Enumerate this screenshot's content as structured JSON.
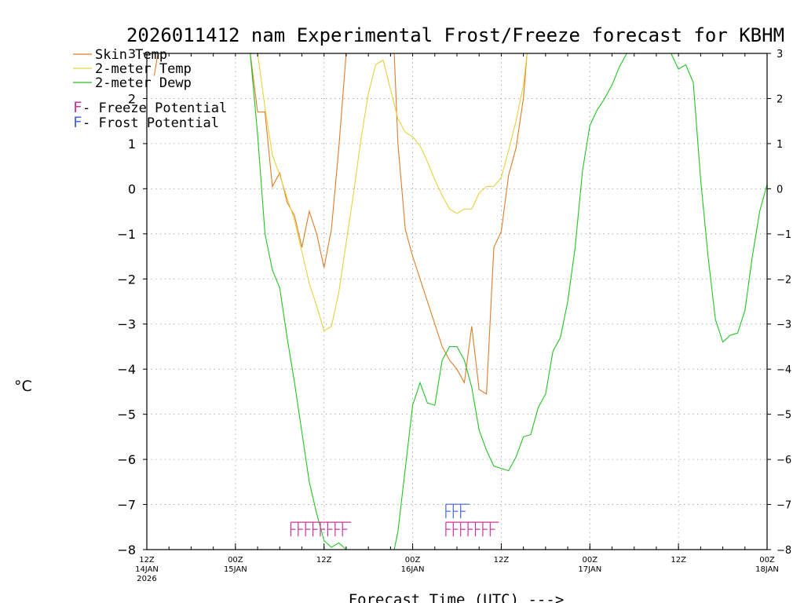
{
  "chart_data": {
    "type": "line",
    "title": "2026011412 nam Experimental Frost/Freeze forecast for KBHM",
    "ylabel": "°C",
    "xlabel": "Forecast Time (UTC) --->",
    "xlim": [
      0,
      84
    ],
    "ylim": [
      -8,
      3
    ],
    "yticks": [
      3,
      2,
      1,
      0,
      -1,
      -2,
      -3,
      -4,
      -5,
      -6,
      -7,
      -8
    ],
    "xticks": [
      {
        "x": 0,
        "label1": "12Z",
        "label2": "14JAN",
        "label3": "2026"
      },
      {
        "x": 12,
        "label1": "00Z",
        "label2": "15JAN",
        "label3": ""
      },
      {
        "x": 24,
        "label1": "12Z",
        "label2": "",
        "label3": ""
      },
      {
        "x": 36,
        "label1": "00Z",
        "label2": "16JAN",
        "label3": ""
      },
      {
        "x": 48,
        "label1": "12Z",
        "label2": "",
        "label3": ""
      },
      {
        "x": 60,
        "label1": "00Z",
        "label2": "17JAN",
        "label3": ""
      },
      {
        "x": 72,
        "label1": "12Z",
        "label2": "",
        "label3": ""
      },
      {
        "x": 84,
        "label1": "00Z",
        "label2": "18JAN",
        "label3": ""
      }
    ],
    "grid": true,
    "series": [
      {
        "name": "Skin Temp",
        "color": "#e07c28",
        "x": [
          1,
          1.5,
          14,
          15,
          16,
          17,
          18,
          19,
          20,
          21,
          22,
          23,
          24,
          25,
          26,
          27,
          33.5,
          34,
          35,
          36,
          37,
          38,
          39,
          40,
          41,
          42,
          43,
          44,
          45,
          46,
          47,
          48,
          49,
          50,
          51,
          51.5
        ],
        "values": [
          2.5,
          3.0,
          3.0,
          1.7,
          1.7,
          0.05,
          0.35,
          -0.3,
          -0.6,
          -1.3,
          -0.5,
          -1.0,
          -1.75,
          -0.9,
          0.9,
          3.0,
          3.0,
          1.0,
          -0.9,
          -1.5,
          -2.0,
          -2.5,
          -3.0,
          -3.5,
          -3.8,
          -4.0,
          -4.3,
          -3.05,
          -4.45,
          -4.55,
          -1.3,
          -0.95,
          0.3,
          0.9,
          2.0,
          3.0
        ]
      },
      {
        "name": "2-meter Temp",
        "color": "#e6d23c",
        "x": [
          15,
          16,
          17,
          18,
          19,
          20,
          21,
          22,
          23,
          24,
          25,
          26,
          27,
          28,
          29,
          30,
          31,
          32,
          33,
          34,
          35,
          36,
          37,
          38,
          39,
          40,
          41,
          42,
          43,
          44,
          45,
          46,
          47,
          48,
          49,
          50,
          51,
          51.5
        ],
        "values": [
          3.0,
          1.8,
          0.75,
          0.3,
          -0.2,
          -0.7,
          -1.4,
          -2.1,
          -2.6,
          -3.15,
          -3.05,
          -2.3,
          -1.2,
          -0.1,
          1.1,
          2.1,
          2.75,
          2.85,
          2.2,
          1.55,
          1.25,
          1.15,
          0.95,
          0.6,
          0.2,
          -0.15,
          -0.45,
          -0.55,
          -0.45,
          -0.45,
          -0.1,
          0.05,
          0.05,
          0.25,
          0.85,
          1.5,
          2.3,
          3.0
        ]
      },
      {
        "name": "2-meter Dewp",
        "color": "#22c422",
        "x": [
          14,
          15,
          16,
          17,
          18,
          19,
          20,
          21,
          22,
          23,
          24,
          25,
          26,
          27,
          33.5,
          34,
          35,
          36,
          37,
          38,
          39,
          40,
          41,
          42,
          43,
          44,
          45,
          46,
          47,
          48,
          49,
          50,
          51,
          52,
          53,
          54,
          55,
          56,
          57,
          58,
          59,
          60,
          61,
          62,
          63,
          64,
          65,
          66,
          71,
          72,
          73,
          74,
          75,
          76,
          77,
          78,
          79,
          80,
          81,
          82,
          83,
          84
        ],
        "values": [
          3.0,
          1.2,
          -1.0,
          -1.8,
          -2.2,
          -3.3,
          -4.3,
          -5.4,
          -6.5,
          -7.2,
          -7.8,
          -7.95,
          -7.85,
          -8.0,
          -8.0,
          -7.6,
          -6.2,
          -4.8,
          -4.3,
          -4.75,
          -4.8,
          -3.8,
          -3.5,
          -3.5,
          -3.8,
          -4.4,
          -5.35,
          -5.8,
          -6.15,
          -6.2,
          -6.25,
          -5.95,
          -5.5,
          -5.45,
          -4.85,
          -4.55,
          -3.6,
          -3.3,
          -2.5,
          -1.3,
          0.4,
          1.4,
          1.75,
          2.0,
          2.3,
          2.7,
          3.0,
          3.0,
          3.0,
          2.65,
          2.75,
          2.35,
          0.2,
          -1.5,
          -2.9,
          -3.4,
          -3.25,
          -3.2,
          -2.7,
          -1.5,
          -0.5,
          0.1
        ]
      }
    ],
    "potential_markers": [
      {
        "name": "Freeze Potential",
        "color": "#cc3399",
        "x_start": 19.5,
        "x_end": 26.5,
        "y": -7.55
      },
      {
        "name": "Freeze Potential",
        "color": "#cc3399",
        "x_start": 40.5,
        "x_end": 46.5,
        "y": -7.55
      },
      {
        "name": "Frost Potential",
        "color": "#4466dd",
        "x_start": 40.5,
        "x_end": 42.5,
        "y": -7.15
      }
    ],
    "legend": [
      {
        "label": "Skin Temp",
        "color": "#e07c28"
      },
      {
        "label": "2-meter Temp",
        "color": "#e6d23c"
      },
      {
        "label": "2-meter Dewp",
        "color": "#22c422"
      }
    ],
    "potential_legend": [
      {
        "letter": "F",
        "text": " - Freeze Potential",
        "color": "#cc3399"
      },
      {
        "letter": "F",
        "text": " - Frost Potential",
        "color": "#4466dd"
      }
    ]
  }
}
